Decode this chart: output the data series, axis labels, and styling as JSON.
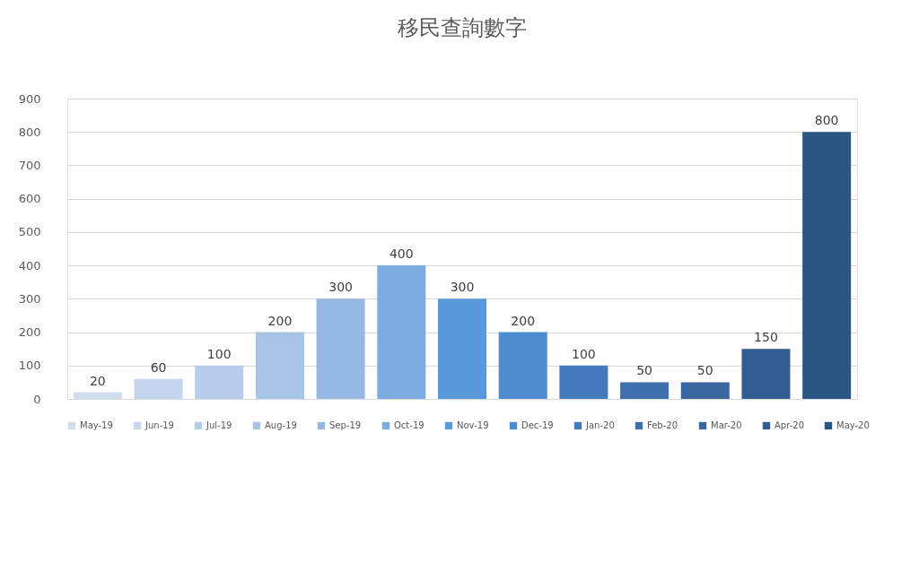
{
  "chart_data": {
    "type": "bar",
    "title": "移民查詢數字",
    "categories": [
      null,
      null,
      null,
      null,
      null,
      null,
      null,
      null,
      null,
      null,
      null,
      null,
      null
    ],
    "series": [
      {
        "name": "May-19",
        "color": "#d0dcef",
        "values": [
          20,
          null,
          null,
          null,
          null,
          null,
          null,
          null,
          null,
          null,
          null,
          null,
          null
        ]
      },
      {
        "name": "Jun-19",
        "color": "#c5d5ee",
        "values": [
          null,
          60,
          null,
          null,
          null,
          null,
          null,
          null,
          null,
          null,
          null,
          null,
          null
        ]
      },
      {
        "name": "Jul-19",
        "color": "#b8cceb",
        "values": [
          null,
          null,
          100,
          null,
          null,
          null,
          null,
          null,
          null,
          null,
          null,
          null,
          null
        ]
      },
      {
        "name": "Aug-19",
        "color": "#a7c3e6",
        "values": [
          null,
          null,
          null,
          200,
          null,
          null,
          null,
          null,
          null,
          null,
          null,
          null,
          null
        ]
      },
      {
        "name": "Sep-19",
        "color": "#96b8e2",
        "values": [
          null,
          null,
          null,
          null,
          300,
          null,
          null,
          null,
          null,
          null,
          null,
          null,
          null
        ]
      },
      {
        "name": "Oct-19",
        "color": "#7eabe0",
        "values": [
          null,
          null,
          null,
          null,
          null,
          400,
          null,
          null,
          null,
          null,
          null,
          null,
          null
        ]
      },
      {
        "name": "Nov-19",
        "color": "#5a9ad9",
        "values": [
          null,
          null,
          null,
          null,
          null,
          null,
          300,
          null,
          null,
          null,
          null,
          null,
          null
        ]
      },
      {
        "name": "Dec-19",
        "color": "#4e8bcf",
        "values": [
          null,
          null,
          null,
          null,
          null,
          null,
          null,
          200,
          null,
          null,
          null,
          null,
          null
        ]
      },
      {
        "name": "Jan-20",
        "color": "#4479bb",
        "values": [
          null,
          null,
          null,
          null,
          null,
          null,
          null,
          null,
          100,
          null,
          null,
          null,
          null
        ]
      },
      {
        "name": "Feb-20",
        "color": "#3f6fac",
        "values": [
          null,
          null,
          null,
          null,
          null,
          null,
          null,
          null,
          null,
          50,
          null,
          null,
          null
        ]
      },
      {
        "name": "Mar-20",
        "color": "#3b67a1",
        "values": [
          null,
          null,
          null,
          null,
          null,
          null,
          null,
          null,
          null,
          null,
          50,
          null,
          null
        ]
      },
      {
        "name": "Apr-20",
        "color": "#335c91",
        "values": [
          null,
          null,
          null,
          null,
          null,
          null,
          null,
          null,
          null,
          null,
          null,
          150,
          null
        ]
      },
      {
        "name": "May-20",
        "color": "#2b5582",
        "values": [
          null,
          null,
          null,
          null,
          null,
          null,
          null,
          null,
          null,
          null,
          null,
          null,
          800
        ]
      }
    ],
    "ylim": [
      0,
      900
    ],
    "yticks": [
      0,
      100,
      200,
      300,
      400,
      500,
      600,
      700,
      800,
      900
    ],
    "grid": "y",
    "data_labels": true,
    "legend": "bottom"
  }
}
